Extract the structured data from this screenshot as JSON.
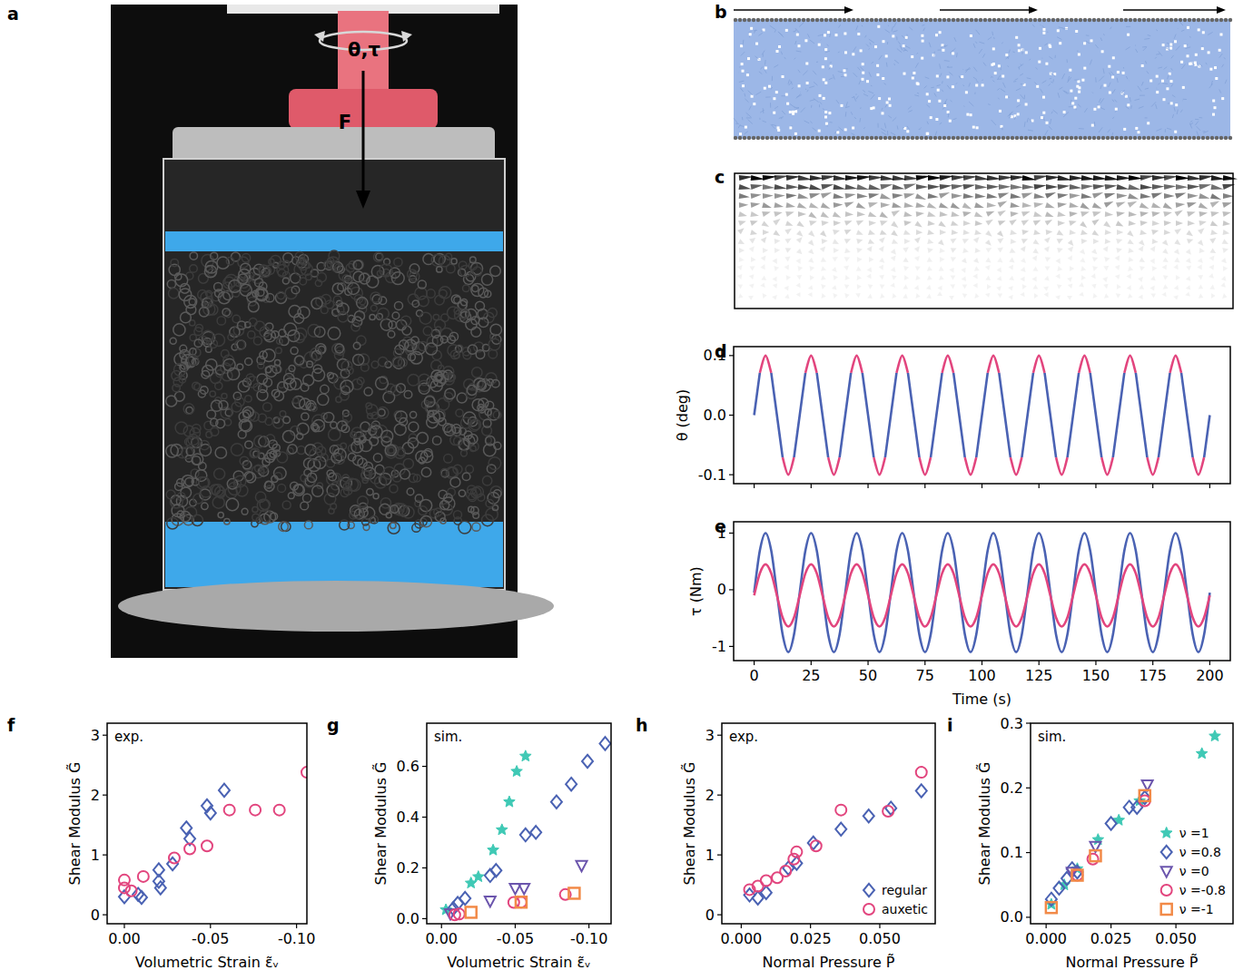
{
  "figure": {
    "panel_labels": [
      "a",
      "b",
      "c",
      "d",
      "e",
      "f",
      "g",
      "h",
      "i"
    ],
    "photo_labels": [
      "θ,τ",
      "F"
    ]
  },
  "chart_data": [
    {
      "type": "line",
      "y_label": "θ (deg)",
      "tick_labels": "y",
      "grid": false,
      "xlim": [
        -9,
        209
      ],
      "ylim": [
        -0.115,
        0.115
      ],
      "xticks": [
        0,
        25,
        50,
        75,
        100,
        125,
        150,
        175,
        200
      ],
      "yticks": [
        -0.1,
        {
          "value": 0,
          "label": "0.0"
        },
        0.1
      ],
      "x": [
        0,
        2.5,
        5,
        7.5,
        10,
        12.5,
        15,
        17.5,
        20,
        22.5,
        25,
        27.5,
        30,
        32.5,
        35,
        37.5,
        40,
        42.5,
        45,
        47.5,
        50,
        52.5,
        55,
        57.5,
        60,
        62.5,
        65,
        67.5,
        70,
        72.5,
        75,
        77.5,
        80,
        82.5,
        85,
        87.5,
        90,
        92.5,
        95,
        97.5,
        100,
        102.5,
        105,
        107.5,
        110,
        112.5,
        115,
        117.5,
        120,
        122.5,
        125,
        127.5,
        130,
        132.5,
        135,
        137.5,
        140,
        142.5,
        145,
        147.5,
        150,
        152.5,
        155,
        157.5,
        160,
        162.5,
        165,
        167.5,
        170,
        172.5,
        175,
        177.5,
        180,
        182.5,
        185,
        187.5,
        190,
        192.5,
        195,
        197.5,
        200
      ],
      "series": [
        {
          "color": "#4a62b3",
          "values": [
            0,
            0.071,
            null,
            0.071,
            0,
            -0.071,
            null,
            -0.071,
            0,
            0.071,
            null,
            0.071,
            0,
            -0.071,
            null,
            -0.071,
            0,
            0.071,
            null,
            0.071,
            0,
            -0.071,
            null,
            -0.071,
            0,
            0.071,
            null,
            0.071,
            0,
            -0.071,
            null,
            -0.071,
            0,
            0.071,
            null,
            0.071,
            0,
            -0.071,
            null,
            -0.071,
            0,
            0.071,
            null,
            0.071,
            0,
            -0.071,
            null,
            -0.071,
            0,
            0.071,
            null,
            0.071,
            0,
            -0.071,
            null,
            -0.071,
            0,
            0.071,
            null,
            0.071,
            0,
            -0.071,
            null,
            -0.071,
            0,
            0.071,
            null,
            0.071,
            0,
            -0.071,
            null,
            -0.071,
            0,
            0.071,
            null,
            0.071,
            0,
            -0.071,
            null,
            -0.071,
            0
          ]
        },
        {
          "color": "#e2457e",
          "values": [
            null,
            0.071,
            0.1,
            0.071,
            null,
            -0.071,
            -0.1,
            -0.071,
            null,
            0.071,
            0.1,
            0.071,
            null,
            -0.071,
            -0.1,
            -0.071,
            null,
            0.071,
            0.1,
            0.071,
            null,
            -0.071,
            -0.1,
            -0.071,
            null,
            0.071,
            0.1,
            0.071,
            null,
            -0.071,
            -0.1,
            -0.071,
            null,
            0.071,
            0.1,
            0.071,
            null,
            -0.071,
            -0.1,
            -0.071,
            null,
            0.071,
            0.1,
            0.071,
            null,
            -0.071,
            -0.1,
            -0.071,
            null,
            0.071,
            0.1,
            0.071,
            null,
            -0.071,
            -0.1,
            -0.071,
            null,
            0.071,
            0.1,
            0.071,
            null,
            -0.071,
            -0.1,
            -0.071,
            null,
            0.071,
            0.1,
            0.071,
            null,
            -0.071,
            -0.1,
            -0.071,
            null,
            0.071,
            0.1,
            0.071,
            null,
            -0.071,
            -0.1,
            -0.071,
            null
          ]
        }
      ]
    },
    {
      "type": "line",
      "x_label": "Time (s)",
      "y_label": "τ (Nm)",
      "grid": false,
      "xlim": [
        -9,
        209
      ],
      "ylim": [
        -1.25,
        1.2
      ],
      "xticks": [
        0,
        25,
        50,
        75,
        100,
        125,
        150,
        175,
        200
      ],
      "yticks": [
        -1,
        0,
        1
      ],
      "x": [
        0,
        2.5,
        5,
        7.5,
        10,
        12.5,
        15,
        17.5,
        20,
        22.5,
        25,
        27.5,
        30,
        32.5,
        35,
        37.5,
        40,
        42.5,
        45,
        47.5,
        50,
        52.5,
        55,
        57.5,
        60,
        62.5,
        65,
        67.5,
        70,
        72.5,
        75,
        77.5,
        80,
        82.5,
        85,
        87.5,
        90,
        92.5,
        95,
        97.5,
        100,
        102.5,
        105,
        107.5,
        110,
        112.5,
        115,
        117.5,
        120,
        122.5,
        125,
        127.5,
        130,
        132.5,
        135,
        137.5,
        140,
        142.5,
        145,
        147.5,
        150,
        152.5,
        155,
        157.5,
        160,
        162.5,
        165,
        167.5,
        170,
        172.5,
        175,
        177.5,
        180,
        182.5,
        185,
        187.5,
        190,
        192.5,
        195,
        197.5,
        200
      ],
      "series": [
        {
          "color": "#4a62b3",
          "values": [
            -0.05,
            0.69,
            1.0,
            0.69,
            -0.05,
            -0.79,
            -1.1,
            -0.79,
            -0.05,
            0.69,
            1.0,
            0.69,
            -0.05,
            -0.79,
            -1.1,
            -0.79,
            -0.05,
            0.69,
            1.0,
            0.69,
            -0.05,
            -0.79,
            -1.1,
            -0.79,
            -0.05,
            0.69,
            1.0,
            0.69,
            -0.05,
            -0.79,
            -1.1,
            -0.79,
            -0.05,
            0.69,
            1.0,
            0.69,
            -0.05,
            -0.79,
            -1.1,
            -0.79,
            -0.05,
            0.69,
            1.0,
            0.69,
            -0.05,
            -0.79,
            -1.1,
            -0.79,
            -0.05,
            0.69,
            1.0,
            0.69,
            -0.05,
            -0.79,
            -1.1,
            -0.79,
            -0.05,
            0.69,
            1.0,
            0.69,
            -0.05,
            -0.79,
            -1.1,
            -0.79,
            -0.05,
            0.69,
            1.0,
            0.69,
            -0.05,
            -0.79,
            -1.1,
            -0.79,
            -0.05,
            0.69,
            1.0,
            0.69,
            -0.05,
            -0.79,
            -1.1,
            -0.79,
            -0.05
          ]
        },
        {
          "color": "#e2457e",
          "values": [
            -0.1,
            0.29,
            0.45,
            0.29,
            -0.1,
            -0.49,
            -0.65,
            -0.49,
            -0.1,
            0.29,
            0.45,
            0.29,
            -0.1,
            -0.49,
            -0.65,
            -0.49,
            -0.1,
            0.29,
            0.45,
            0.29,
            -0.1,
            -0.49,
            -0.65,
            -0.49,
            -0.1,
            0.29,
            0.45,
            0.29,
            -0.1,
            -0.49,
            -0.65,
            -0.49,
            -0.1,
            0.29,
            0.45,
            0.29,
            -0.1,
            -0.49,
            -0.65,
            -0.49,
            -0.1,
            0.29,
            0.45,
            0.29,
            -0.1,
            -0.49,
            -0.65,
            -0.49,
            -0.1,
            0.29,
            0.45,
            0.29,
            -0.1,
            -0.49,
            -0.65,
            -0.49,
            -0.1,
            0.29,
            0.45,
            0.29,
            -0.1,
            -0.49,
            -0.65,
            -0.49,
            -0.1,
            0.29,
            0.45,
            0.29,
            -0.1,
            -0.49,
            -0.65,
            -0.49,
            -0.1,
            0.29,
            0.45,
            0.29,
            -0.1,
            -0.49,
            -0.65,
            -0.49,
            -0.1
          ]
        }
      ]
    },
    {
      "type": "scatter",
      "x_label": "Volumetric Strain ε̃ᵥ",
      "y_label": "Shear Modulus G̃",
      "annotations": [
        "exp."
      ],
      "grid": false,
      "xlim": [
        0.01,
        -0.106
      ],
      "ylim": [
        -0.15,
        3.2
      ],
      "xticks": [
        {
          "value": 0,
          "label": "0.00"
        },
        {
          "value": -0.05,
          "label": "-0.05"
        },
        {
          "value": -0.1,
          "label": "-0.10"
        }
      ],
      "yticks": [
        0,
        1,
        2,
        3
      ],
      "series": [
        {
          "color": "#4a62b3",
          "marker": "diamond",
          "x": [
            0,
            -0.008,
            -0.01,
            -0.02,
            -0.02,
            -0.021,
            -0.028,
            -0.036,
            -0.038,
            -0.048,
            -0.05,
            -0.058
          ],
          "values": [
            0.3,
            0.34,
            0.29,
            0.75,
            0.56,
            0.45,
            0.85,
            1.45,
            1.27,
            1.82,
            1.7,
            2.08
          ]
        },
        {
          "color": "#e2457e",
          "marker": "circle",
          "x": [
            0,
            0,
            -0.004,
            -0.011,
            -0.029,
            -0.038,
            -0.048,
            -0.061,
            -0.076,
            -0.09,
            -0.106
          ],
          "values": [
            0.58,
            0.45,
            0.4,
            0.64,
            0.95,
            1.1,
            1.15,
            1.75,
            1.75,
            1.75,
            2.38
          ]
        }
      ]
    },
    {
      "type": "scatter",
      "x_label": "Volumetric Strain ε̃ᵥ",
      "y_label": "Shear Modulus G̃",
      "annotations": [
        "sim."
      ],
      "grid": false,
      "xlim": [
        0.01,
        -0.115
      ],
      "ylim": [
        -0.02,
        0.77
      ],
      "xticks": [
        {
          "value": 0,
          "label": "0.00"
        },
        {
          "value": -0.05,
          "label": "-0.05"
        },
        {
          "value": -0.1,
          "label": "-0.10"
        }
      ],
      "yticks": [
        {
          "value": 0,
          "label": "0.0"
        },
        0.2,
        0.4,
        0.6
      ],
      "series": [
        {
          "color": "#3fc9b5",
          "marker": "star",
          "x": [
            -0.003,
            -0.02,
            -0.025,
            -0.035,
            -0.041,
            -0.046,
            -0.051,
            -0.057
          ],
          "values": [
            0.035,
            0.14,
            0.165,
            0.27,
            0.35,
            0.46,
            0.58,
            0.64
          ]
        },
        {
          "color": "#4a62b3",
          "marker": "diamond",
          "x": [
            -0.008,
            -0.011,
            -0.016,
            -0.033,
            -0.037,
            -0.057,
            -0.064,
            -0.078,
            -0.088,
            -0.099,
            -0.111
          ],
          "values": [
            0.04,
            0.06,
            0.08,
            0.17,
            0.19,
            0.33,
            0.34,
            0.46,
            0.53,
            0.62,
            0.69
          ]
        },
        {
          "color": "#6b55ad",
          "marker": "triangle",
          "x": [
            -0.006,
            -0.033,
            -0.05,
            -0.056,
            -0.095
          ],
          "values": [
            0.02,
            0.07,
            0.12,
            0.12,
            0.21
          ]
        },
        {
          "color": "#e2457e",
          "marker": "circle",
          "x": [
            -0.009,
            -0.012,
            -0.049,
            -0.054,
            -0.084
          ],
          "values": [
            0.015,
            0.018,
            0.064,
            0.065,
            0.095
          ]
        },
        {
          "color": "#f28a48",
          "marker": "square",
          "x": [
            -0.02,
            -0.054,
            -0.09
          ],
          "values": [
            0.025,
            0.065,
            0.1
          ]
        }
      ]
    },
    {
      "type": "scatter",
      "x_label": "Normal Pressure P̃",
      "y_label": "Shear Modulus G̃",
      "annotations": [
        "exp."
      ],
      "grid": false,
      "legend": "lower right",
      "xlim": [
        -0.007,
        0.07
      ],
      "ylim": [
        -0.15,
        3.2
      ],
      "xticks": [
        {
          "value": 0,
          "label": "0.000"
        },
        {
          "value": 0.025,
          "label": "0.025"
        },
        {
          "value": 0.05,
          "label": "0.050"
        }
      ],
      "yticks": [
        0,
        1,
        2,
        3
      ],
      "series": [
        {
          "name": "regular",
          "color": "#4a62b3",
          "marker": "diamond",
          "x": [
            0.003,
            0.006,
            0.009,
            0.017,
            0.02,
            0.026,
            0.036,
            0.046,
            0.054,
            0.065
          ],
          "values": [
            0.33,
            0.28,
            0.37,
            0.78,
            0.86,
            1.2,
            1.43,
            1.65,
            1.78,
            2.07
          ]
        },
        {
          "name": "auxetic",
          "color": "#e2457e",
          "marker": "circle",
          "x": [
            0.003,
            0.006,
            0.009,
            0.013,
            0.016,
            0.019,
            0.02,
            0.027,
            0.036,
            0.053,
            0.065
          ],
          "values": [
            0.42,
            0.48,
            0.57,
            0.62,
            0.73,
            0.93,
            1.05,
            1.15,
            1.75,
            1.73,
            2.38
          ]
        }
      ]
    },
    {
      "type": "scatter",
      "x_label": "Normal Pressure P̃",
      "y_label": "Shear Modulus G̃",
      "annotations": [
        "sim."
      ],
      "grid": false,
      "legend": "lower right",
      "xlim": [
        -0.006,
        0.072
      ],
      "ylim": [
        -0.01,
        0.3
      ],
      "xticks": [
        {
          "value": 0,
          "label": "0.000"
        },
        {
          "value": 0.025,
          "label": "0.025"
        },
        {
          "value": 0.05,
          "label": "0.050"
        }
      ],
      "yticks": [
        {
          "value": 0,
          "label": "0.0"
        },
        0.1,
        0.2,
        0.3
      ],
      "series": [
        {
          "name": "ν =1",
          "color": "#3fc9b5",
          "marker": "star",
          "x": [
            0.002,
            0.007,
            0.012,
            0.02,
            0.028,
            0.036,
            0.06,
            0.065
          ],
          "values": [
            0.02,
            0.05,
            0.075,
            0.12,
            0.15,
            0.18,
            0.253,
            0.28
          ]
        },
        {
          "name": "ν =0.8",
          "color": "#4a62b3",
          "marker": "diamond",
          "x": [
            0.002,
            0.005,
            0.008,
            0.01,
            0.012,
            0.025,
            0.032,
            0.035,
            0.038
          ],
          "values": [
            0.028,
            0.045,
            0.06,
            0.075,
            0.07,
            0.145,
            0.17,
            0.17,
            0.185
          ]
        },
        {
          "name": "ν =0",
          "color": "#6b55ad",
          "marker": "triangle",
          "x": [
            0.01,
            0.019,
            0.039
          ],
          "values": [
            0.07,
            0.11,
            0.205
          ]
        },
        {
          "name": "ν =-0.8",
          "color": "#e2457e",
          "marker": "circle",
          "x": [
            0.012,
            0.018,
            0.038
          ],
          "values": [
            0.065,
            0.09,
            0.18
          ]
        },
        {
          "name": "ν =-1",
          "color": "#f28a48",
          "marker": "square",
          "x": [
            0.002,
            0.012,
            0.019,
            0.038
          ],
          "values": [
            0.015,
            0.065,
            0.095,
            0.188
          ]
        }
      ]
    }
  ]
}
